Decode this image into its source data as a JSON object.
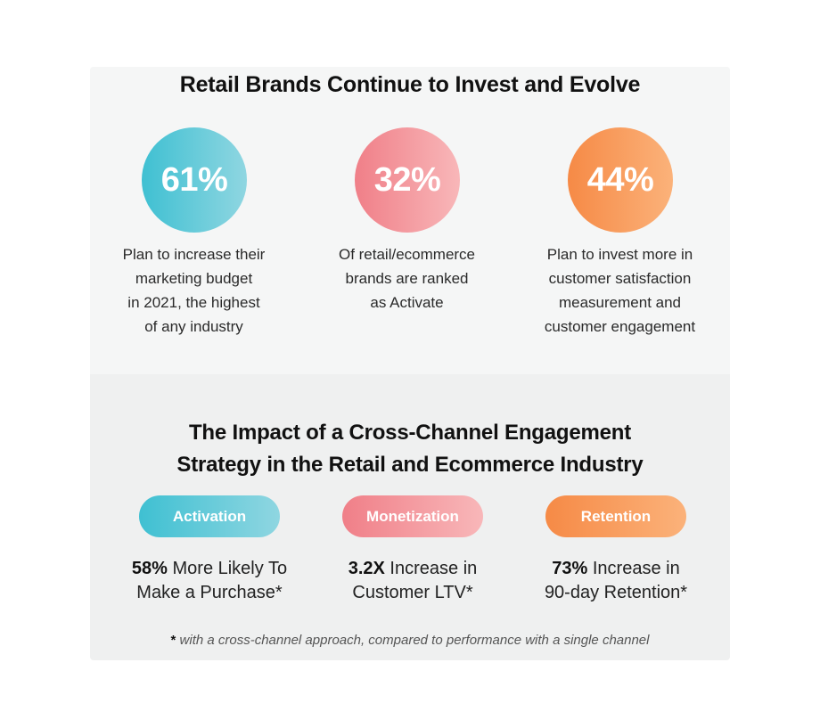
{
  "top": {
    "title": "Retail Brands Continue to Invest and Evolve",
    "stats": [
      {
        "value": "61%",
        "text": "Plan to increase their\nmarketing budget\nin 2021, the highest\nof any industry"
      },
      {
        "value": "32%",
        "text": "Of retail/ecommerce\nbrands are ranked\nas Activate"
      },
      {
        "value": "44%",
        "text": "Plan to invest more in\ncustomer satisfaction\nmeasurement and\ncustomer engagement"
      }
    ]
  },
  "bottom": {
    "title": "The Impact of a Cross-Channel Engagement\nStrategy in the Retail and Ecommerce Industry",
    "items": [
      {
        "label": "Activation",
        "highlight": "58%",
        "line1_rest": " More Likely To",
        "line2": "Make a Purchase*"
      },
      {
        "label": "Monetization",
        "highlight": "3.2X",
        "line1_rest": " Increase in",
        "line2": "Customer LTV*"
      },
      {
        "label": "Retention",
        "highlight": "73%",
        "line1_rest": " Increase in",
        "line2": "90-day Retention*"
      }
    ],
    "footnote_star": "*",
    "footnote_text": " with a cross-channel approach, compared to performance with a single channel"
  },
  "colors": {
    "teal": "#3fc0d2",
    "pink": "#f07f88",
    "orange": "#f68a46",
    "card_background": "#f5f6f6"
  }
}
